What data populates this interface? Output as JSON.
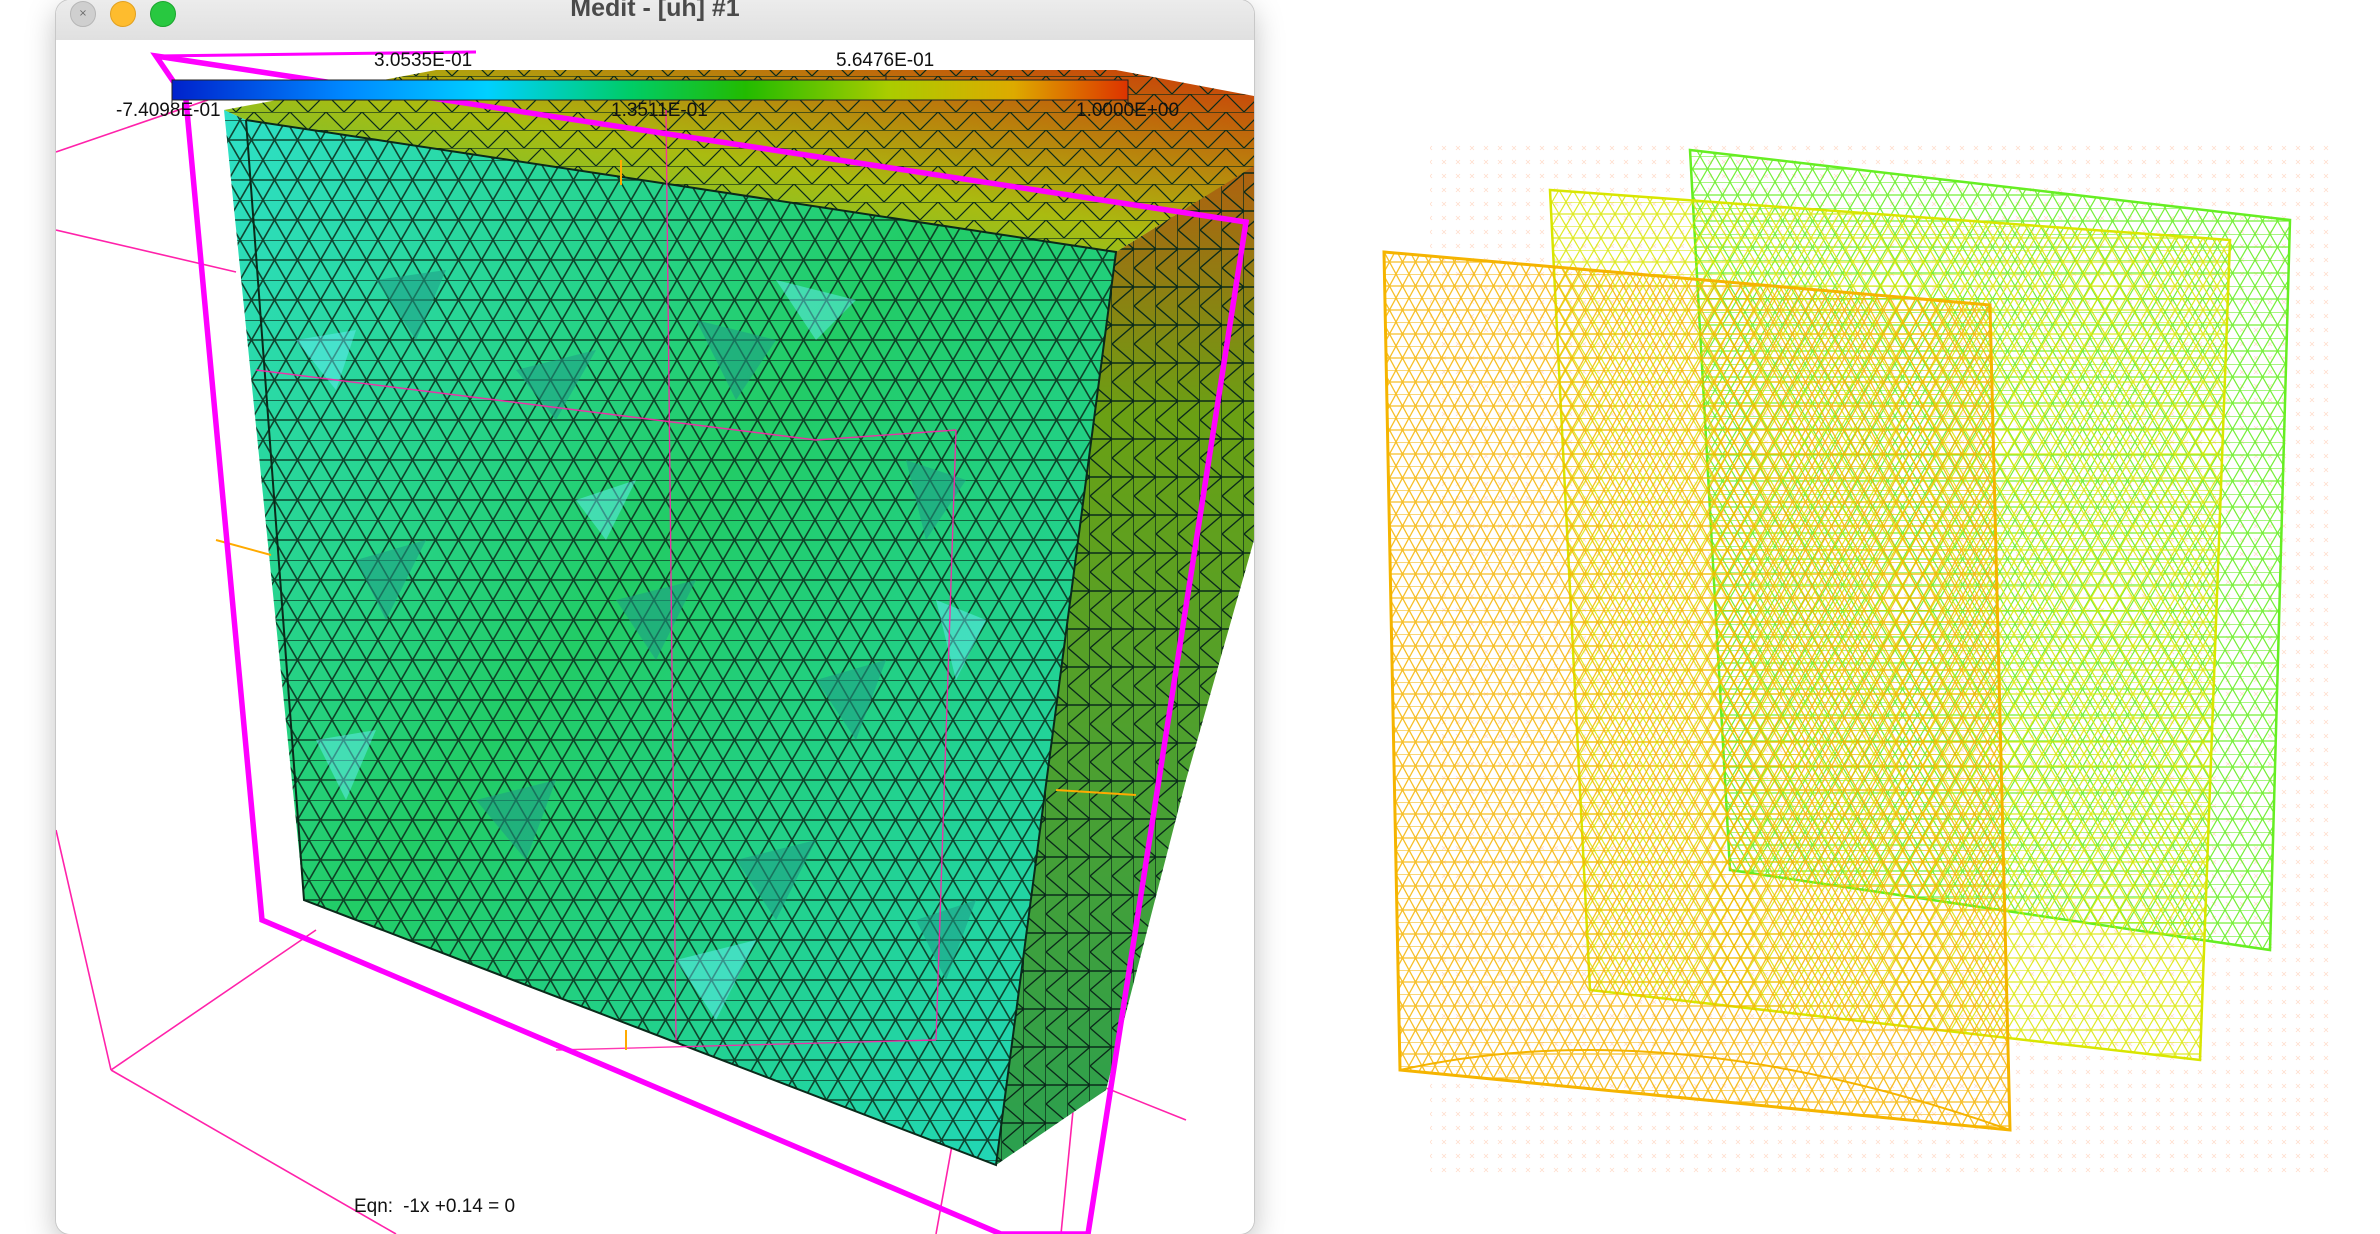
{
  "window": {
    "title": "Medit - [uh] #1",
    "controls": {
      "close": "close-icon",
      "minimize": "minimize-icon",
      "maximize": "maximize-icon"
    }
  },
  "colorbar": {
    "ticks_top": [
      "3.0535E-01",
      "5.6476E-01"
    ],
    "ticks_bottom": [
      "-7.4098E-01",
      "1.3511E-01",
      "1.0000E+00"
    ],
    "gradient_colors": [
      "#0022cc",
      "#0088ff",
      "#00d0ff",
      "#00cc66",
      "#22bb00",
      "#aacc00",
      "#ddaa00",
      "#dd3300"
    ]
  },
  "status": {
    "eqn_label": "Eqn:",
    "eqn_value": "-1x +0.14 = 0"
  },
  "colors": {
    "clip_plane": "#ff00ff",
    "bounding_box": "#ff22aa",
    "mesh_face": "#2ed8b8",
    "mesh_side": "#4aa018",
    "mesh_top": "#9bb810",
    "edge_color": "#0a2a1a",
    "rhs_mesh_front": "#f5b400",
    "rhs_mesh_mid": "#d9e600",
    "rhs_mesh_back": "#66ee22"
  }
}
